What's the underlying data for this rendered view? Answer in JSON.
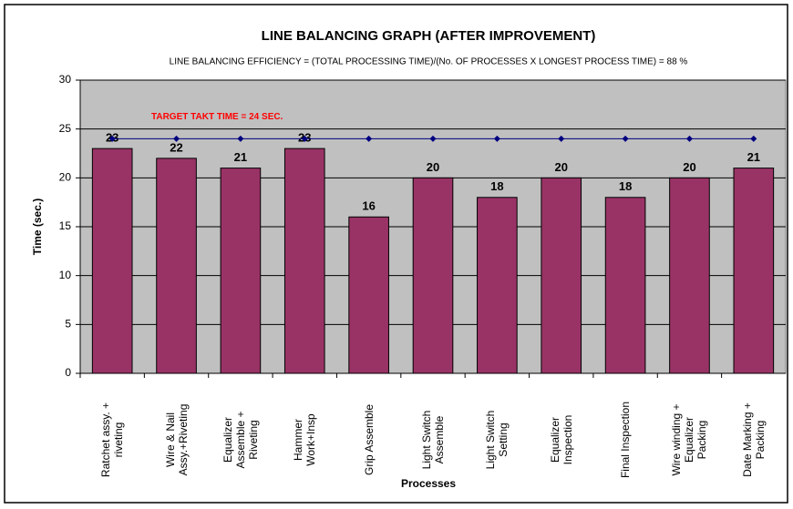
{
  "chart_data": {
    "type": "bar",
    "title": "LINE BALANCING GRAPH (AFTER IMPROVEMENT)",
    "subtitle": "LINE BALANCING EFFICIENCY = (TOTAL PROCESSING TIME)/(No. OF PROCESSES X LONGEST PROCESS TIME) = 88 %",
    "x_label": "Processes",
    "y_label": "Time (sec.)",
    "categories": [
      "Ratchet assy. +\nriveting",
      "Wire & Nail\nAssy.+Riveting",
      "Equalizer\nAssemble +\nRiveting",
      "Hammer\nWork+Insp",
      "Grip Assemble",
      "Light Switch\nAssemble",
      "Light Switch\nSetting",
      "Equalizer\nInspection",
      "Final Inspection",
      "Wire winding +\nEqualizer\nPacking",
      "Date Marking +\nPacking"
    ],
    "values": [
      23,
      22,
      21,
      23,
      16,
      20,
      18,
      20,
      18,
      20,
      21
    ],
    "color": "#993366",
    "target": {
      "values": [
        24,
        24,
        24,
        24,
        24,
        24,
        24,
        24,
        24,
        24,
        24
      ],
      "color": "#000080"
    },
    "annotation": "TARGET TAKT TIME = 24 SEC.",
    "ylim": [
      0,
      30
    ],
    "yticks": [
      0,
      5,
      10,
      15,
      20,
      25,
      30
    ],
    "grid": true
  }
}
